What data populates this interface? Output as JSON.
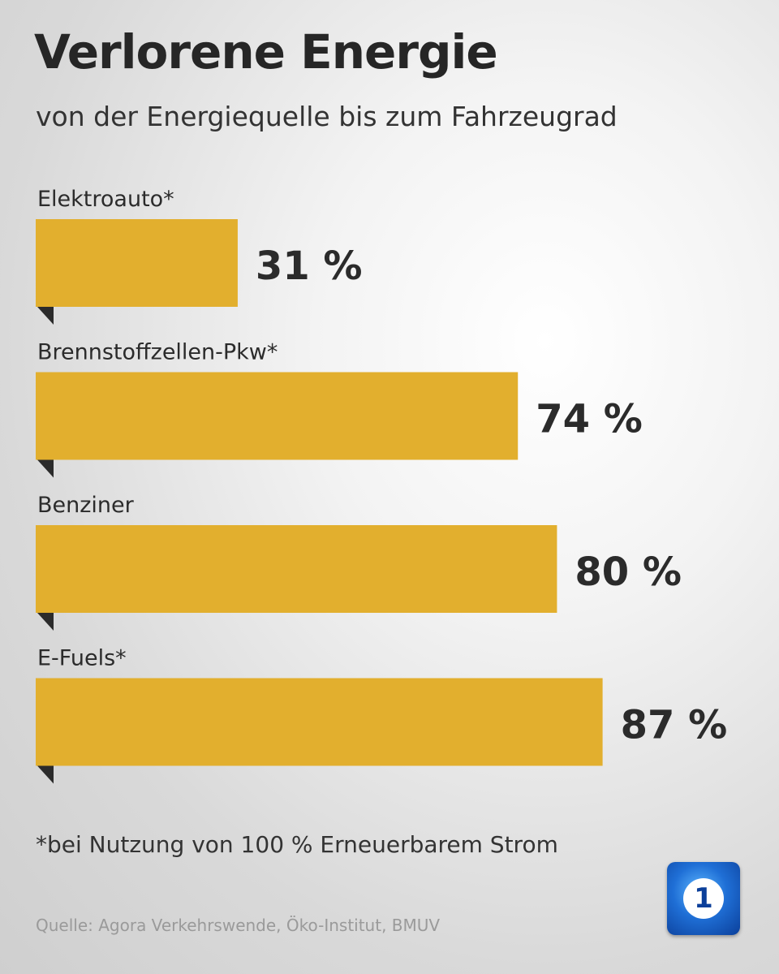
{
  "title": "Verlorene Energie",
  "subtitle": "von der Energiequelle bis zum Fahrzeugrad",
  "footnote": "*bei Nutzung von 100 % Erneuerbarem Strom",
  "source": "Quelle: Agora Verkehrswende, Öko-Institut, BMUV",
  "logo": {
    "icon": "tagesschau-logo-icon",
    "glyph": "1"
  },
  "colors": {
    "bar": "#E2AF2E",
    "text": "#2B2B2B",
    "tab": "#2B2B2B"
  },
  "chart_data": {
    "type": "bar",
    "orientation": "horizontal",
    "categories": [
      "Elektroauto*",
      "Brennstoffzellen-Pkw*",
      "Benziner",
      "E-Fuels*"
    ],
    "values": [
      31,
      74,
      80,
      87
    ],
    "value_labels": [
      "31 %",
      "74 %",
      "80 %",
      "87 %"
    ],
    "unit": "%",
    "title": "Verlorene Energie",
    "subtitle": "von der Energiequelle bis zum Fahrzeugrad",
    "xlim": [
      0,
      100
    ],
    "grid": false,
    "legend": "none"
  }
}
